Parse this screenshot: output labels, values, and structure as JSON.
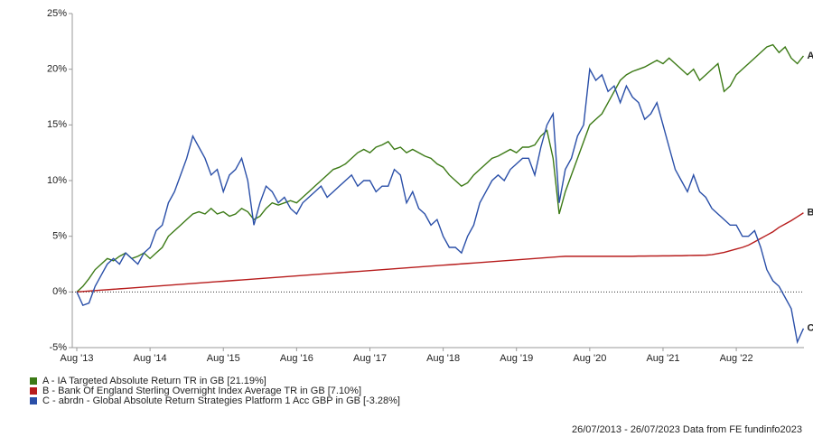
{
  "chart_data": {
    "type": "line",
    "categories": [
      "Aug '13",
      null,
      null,
      null,
      null,
      null,
      null,
      null,
      null,
      null,
      null,
      null,
      "Aug '14",
      null,
      null,
      null,
      null,
      null,
      null,
      null,
      null,
      null,
      null,
      null,
      "Aug '15",
      null,
      null,
      null,
      null,
      null,
      null,
      null,
      null,
      null,
      null,
      null,
      "Aug '16",
      null,
      null,
      null,
      null,
      null,
      null,
      null,
      null,
      null,
      null,
      null,
      "Aug '17",
      null,
      null,
      null,
      null,
      null,
      null,
      null,
      null,
      null,
      null,
      null,
      "Aug '18",
      null,
      null,
      null,
      null,
      null,
      null,
      null,
      null,
      null,
      null,
      null,
      "Aug '19",
      null,
      null,
      null,
      null,
      null,
      null,
      null,
      null,
      null,
      null,
      null,
      "Aug '20",
      null,
      null,
      null,
      null,
      null,
      null,
      null,
      null,
      null,
      null,
      null,
      "Aug '21",
      null,
      null,
      null,
      null,
      null,
      null,
      null,
      null,
      null,
      null,
      null,
      "Aug '22",
      null,
      null,
      null,
      null,
      null,
      null,
      null,
      null,
      null,
      null,
      null
    ],
    "series": [
      {
        "name": "A - IA Targeted Absolute Return TR in GB [21.19%]",
        "label": "A",
        "color": "#3c7a16",
        "values": [
          0,
          0.5,
          1.2,
          2,
          2.5,
          3,
          2.8,
          3.2,
          3.5,
          3,
          3.2,
          3.5,
          3,
          3.5,
          4,
          5,
          5.5,
          6,
          6.5,
          7,
          7.2,
          7,
          7.5,
          7,
          7.2,
          6.8,
          7,
          7.5,
          7.2,
          6.5,
          6.8,
          7.5,
          8,
          7.8,
          8,
          8.2,
          8,
          8.5,
          9,
          9.5,
          10,
          10.5,
          11,
          11.2,
          11.5,
          12,
          12.5,
          12.8,
          12.5,
          13,
          13.2,
          13.5,
          12.8,
          13,
          12.5,
          12.8,
          12.5,
          12.2,
          12,
          11.5,
          11.2,
          10.5,
          10,
          9.5,
          9.8,
          10.5,
          11,
          11.5,
          12,
          12.2,
          12.5,
          12.8,
          12.5,
          13,
          13,
          13.2,
          14,
          14.5,
          12,
          7,
          9,
          10.5,
          12,
          13.5,
          15,
          15.5,
          16,
          17,
          18,
          19,
          19.5,
          19.8,
          20,
          20.2,
          20.5,
          20.8,
          20.5,
          21,
          20.5,
          20,
          19.5,
          20,
          19,
          19.5,
          20,
          20.5,
          18,
          18.5,
          19.5,
          20,
          20.5,
          21,
          21.5,
          22,
          22.2,
          21.5,
          22,
          21,
          20.5,
          21.19
        ]
      },
      {
        "name": "B - Bank Of England Sterling Overnight Index Average TR in GB [7.10%]",
        "label": "B",
        "color": "#b71c1c",
        "values": [
          0,
          0.04,
          0.08,
          0.12,
          0.16,
          0.2,
          0.24,
          0.28,
          0.32,
          0.36,
          0.4,
          0.44,
          0.48,
          0.52,
          0.56,
          0.6,
          0.64,
          0.68,
          0.72,
          0.76,
          0.8,
          0.84,
          0.88,
          0.92,
          0.96,
          1,
          1.04,
          1.08,
          1.12,
          1.16,
          1.2,
          1.24,
          1.28,
          1.32,
          1.36,
          1.4,
          1.44,
          1.48,
          1.52,
          1.56,
          1.6,
          1.64,
          1.68,
          1.72,
          1.76,
          1.8,
          1.84,
          1.88,
          1.92,
          1.96,
          2,
          2.04,
          2.08,
          2.12,
          2.16,
          2.2,
          2.24,
          2.28,
          2.32,
          2.36,
          2.4,
          2.44,
          2.48,
          2.52,
          2.56,
          2.6,
          2.64,
          2.68,
          2.72,
          2.76,
          2.8,
          2.84,
          2.88,
          2.92,
          2.96,
          3,
          3.04,
          3.08,
          3.12,
          3.16,
          3.2,
          3.2,
          3.2,
          3.2,
          3.2,
          3.2,
          3.2,
          3.2,
          3.2,
          3.2,
          3.2,
          3.2,
          3.22,
          3.22,
          3.23,
          3.23,
          3.24,
          3.24,
          3.25,
          3.25,
          3.27,
          3.28,
          3.29,
          3.3,
          3.35,
          3.45,
          3.55,
          3.7,
          3.85,
          4,
          4.2,
          4.5,
          4.8,
          5.1,
          5.4,
          5.8,
          6.1,
          6.4,
          6.75,
          7.1
        ]
      },
      {
        "name": "C - abrdn - Global Absolute Return Strategies Platform 1 Acc GBP in GB [-3.28%]",
        "label": "C",
        "color": "#2a4fa8",
        "values": [
          0,
          -1.2,
          -1,
          0.5,
          1.5,
          2.5,
          3,
          2.5,
          3.5,
          3,
          2.5,
          3.5,
          4,
          5.5,
          6,
          8,
          9,
          10.5,
          12,
          14,
          13,
          12,
          10.5,
          11,
          9,
          10.5,
          11,
          12,
          10,
          6,
          8,
          9.5,
          9,
          8,
          8.5,
          7.5,
          7,
          8,
          8.5,
          9,
          9.5,
          8.5,
          9,
          9.5,
          10,
          10.5,
          9.5,
          10,
          10,
          9,
          9.5,
          9.5,
          11,
          10.5,
          8,
          9,
          7.5,
          7,
          6,
          6.5,
          5,
          4,
          4,
          3.5,
          5,
          6,
          8,
          9,
          10,
          10.5,
          10,
          11,
          11.5,
          12,
          12,
          10.5,
          13,
          15,
          16,
          8,
          11,
          12,
          14,
          15,
          20,
          19,
          19.5,
          18,
          18.5,
          17,
          18.5,
          17.5,
          17,
          15.5,
          16,
          17,
          15,
          13,
          11,
          10,
          9,
          10.5,
          9,
          8.5,
          7.5,
          7,
          6.5,
          6,
          6,
          5,
          5,
          5.5,
          4,
          2,
          1,
          0.5,
          -0.5,
          -1.5,
          -4.5,
          -3.28
        ]
      }
    ],
    "ylim": [
      -5,
      25
    ],
    "yticks": [
      {
        "value": -5,
        "label": "-5%"
      },
      {
        "value": 0,
        "label": "0%"
      },
      {
        "value": 5,
        "label": "5%"
      },
      {
        "value": 10,
        "label": "10%"
      },
      {
        "value": 15,
        "label": "15%"
      },
      {
        "value": 20,
        "label": "20%"
      },
      {
        "value": 25,
        "label": "25%"
      }
    ],
    "footer": "26/07/2013 - 26/07/2023 Data from FE fundinfo2023"
  }
}
